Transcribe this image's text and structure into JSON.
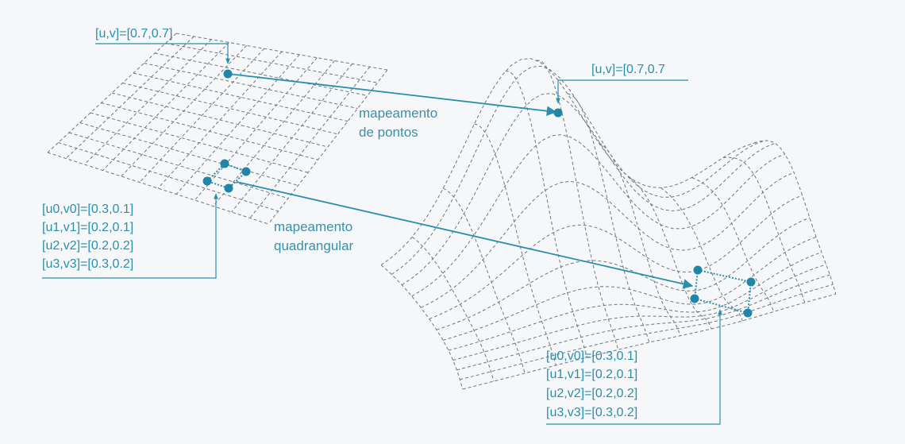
{
  "colors": {
    "accent": "#2a8fae",
    "grid": "#6f7680",
    "background": "#f6f7f8"
  },
  "left_grid": {
    "point_label": "[u,v]=[0.7,0.7]",
    "quad_labels": [
      "[u0,v0]=[0.3,0.1]",
      "[u1,v1]=[0.2,0.1]",
      "[u2,v2]=[0.2,0.2]",
      "[u3,v3]=[0.3,0.2]"
    ]
  },
  "right_surface": {
    "point_label": "[u,v]=[0.7,0.7",
    "quad_labels": [
      "[u0,v0]=[0.3,0.1]",
      "[u1,v1]=[0.2,0.1]",
      "[u2,v2]=[0.2,0.2]",
      "[u3,v3]=[0.3,0.2]"
    ]
  },
  "annotations": {
    "point_mapping": [
      "mapeamento",
      "de pontos"
    ],
    "quad_mapping": [
      "mapeamento",
      "quadrangular"
    ]
  }
}
